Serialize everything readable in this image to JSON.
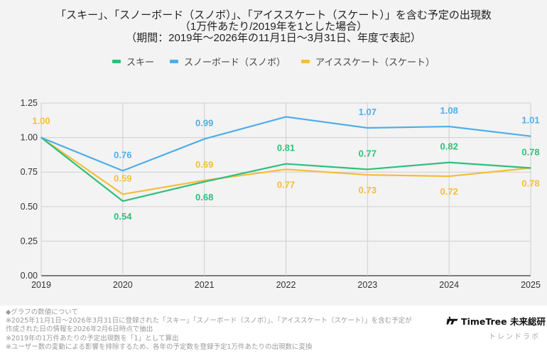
{
  "chart_data": {
    "type": "line",
    "title": [
      "「スキー」、「スノーボード（スノボ）」、「アイススケート（スケート）」を含む予定の出現数",
      "（1万件あたり/2019年を1とした場合）",
      "（期間：2019年〜2026年の11月1日〜3月31日、年度で表記）"
    ],
    "xlabel": "",
    "ylabel": "",
    "x": [
      "2019",
      "2020",
      "2021",
      "2022",
      "2023",
      "2024",
      "2025"
    ],
    "ylim": [
      0,
      1.25
    ],
    "yticks": [
      "0.00",
      "0.25",
      "0.50",
      "0.75",
      "1.00",
      "1.25"
    ],
    "grid": true,
    "legend_position": "top-center",
    "series": [
      {
        "name": "スキー",
        "color": "#2fbf7b",
        "values": [
          1.0,
          0.54,
          0.68,
          0.81,
          0.77,
          0.82,
          0.78
        ],
        "labels": [
          "",
          "0.54",
          "0.68",
          "0.81",
          "0.77",
          "0.82",
          "0.78"
        ],
        "label_pos": [
          "",
          "below",
          "below",
          "above",
          "above",
          "above",
          "above"
        ]
      },
      {
        "name": "スノーボード（スノボ）",
        "color": "#4eaee8",
        "values": [
          1.0,
          0.76,
          0.99,
          1.15,
          1.07,
          1.08,
          1.01
        ],
        "labels": [
          "",
          "0.76",
          "0.99",
          "",
          "1.07",
          "1.08",
          "1.01"
        ],
        "label_pos": [
          "",
          "above",
          "above",
          "",
          "above",
          "above",
          "above"
        ]
      },
      {
        "name": "アイススケート（スケート）",
        "color": "#f6bd3c",
        "values": [
          1.0,
          0.59,
          0.69,
          0.77,
          0.73,
          0.72,
          0.78
        ],
        "labels": [
          "1.00",
          "0.59",
          "0.69",
          "0.77",
          "0.73",
          "0.72",
          "0.78"
        ],
        "label_pos": [
          "above",
          "above",
          "above",
          "below",
          "below",
          "below",
          "below"
        ]
      }
    ]
  },
  "footer": {
    "lines": [
      "◆グラフの数値について",
      "※2025年11月1日〜2026年3月31日に登録された「スキー」「スノーボード（スノボ）」、「アイススケート（スケート）」を含む予定が",
      "作成された日の情報を2026年2月6日時点で抽出",
      "※2019年の1万件あたりの予定出現数を「1」として算出",
      "※ユーザー数の変動による影響を排除するため、各年の予定数を登録予定1万件あたりの出現数に変換"
    ]
  },
  "brand": {
    "name": "TimeTree 未来総研",
    "sub": "トレンドラボ",
    "logo_icon": "timetree-logo-icon"
  }
}
